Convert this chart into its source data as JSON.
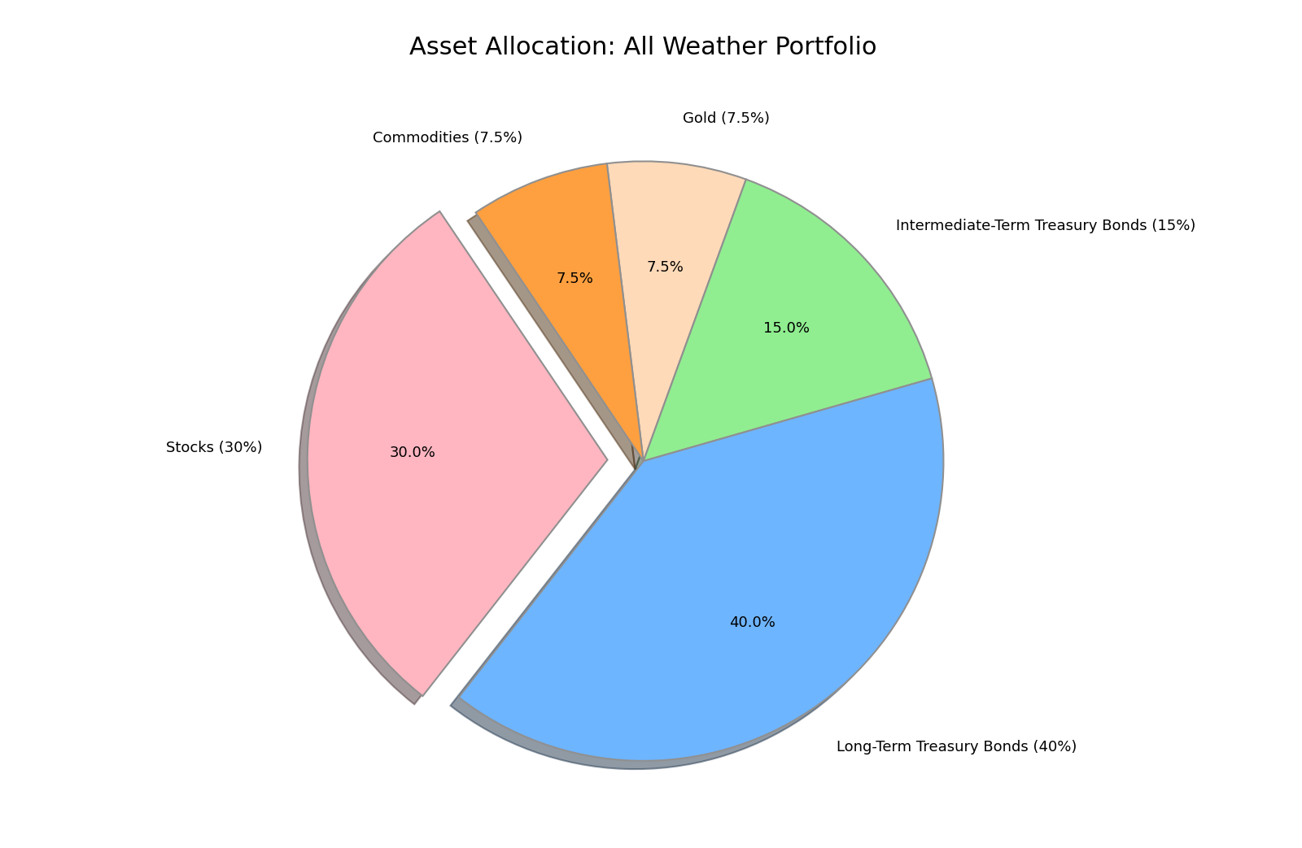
{
  "title": "Asset Allocation: All Weather Portfolio",
  "slices": [
    {
      "label": "Gold (7.5%)",
      "value": 7.5,
      "color": "#FFDAB9",
      "explode": 0.0
    },
    {
      "label": "Intermediate-Term Treasury Bonds (15%)",
      "value": 15.0,
      "color": "#90EE90",
      "explode": 0.0
    },
    {
      "label": "Long-Term Treasury Bonds (40%)",
      "value": 40.0,
      "color": "#6EB5FF",
      "explode": 0.0
    },
    {
      "label": "Stocks (30%)",
      "value": 30.0,
      "color": "#FFB6C1",
      "explode": 0.12
    },
    {
      "label": "Commodities (7.5%)",
      "value": 7.5,
      "color": "#FFA040",
      "explode": 0.0
    }
  ],
  "title_fontsize": 22,
  "label_fontsize": 13,
  "pct_fontsize": 13,
  "shadow": true,
  "startangle": 97,
  "background_color": "#FFFFFF",
  "wedge_linewidth": 1.5,
  "wedge_edgecolor": "#909090"
}
